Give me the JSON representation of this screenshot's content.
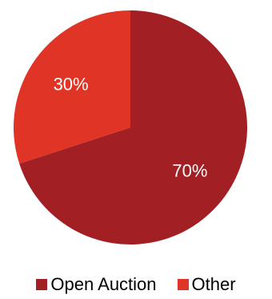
{
  "chart_data": {
    "type": "pie",
    "title": "",
    "legend_position": "bottom",
    "slices": [
      {
        "label": "Open Auction",
        "value": 70,
        "value_label": "70%",
        "color": "#A22023"
      },
      {
        "label": "Other",
        "value": 30,
        "value_label": "30%",
        "color": "#E03426"
      }
    ]
  }
}
